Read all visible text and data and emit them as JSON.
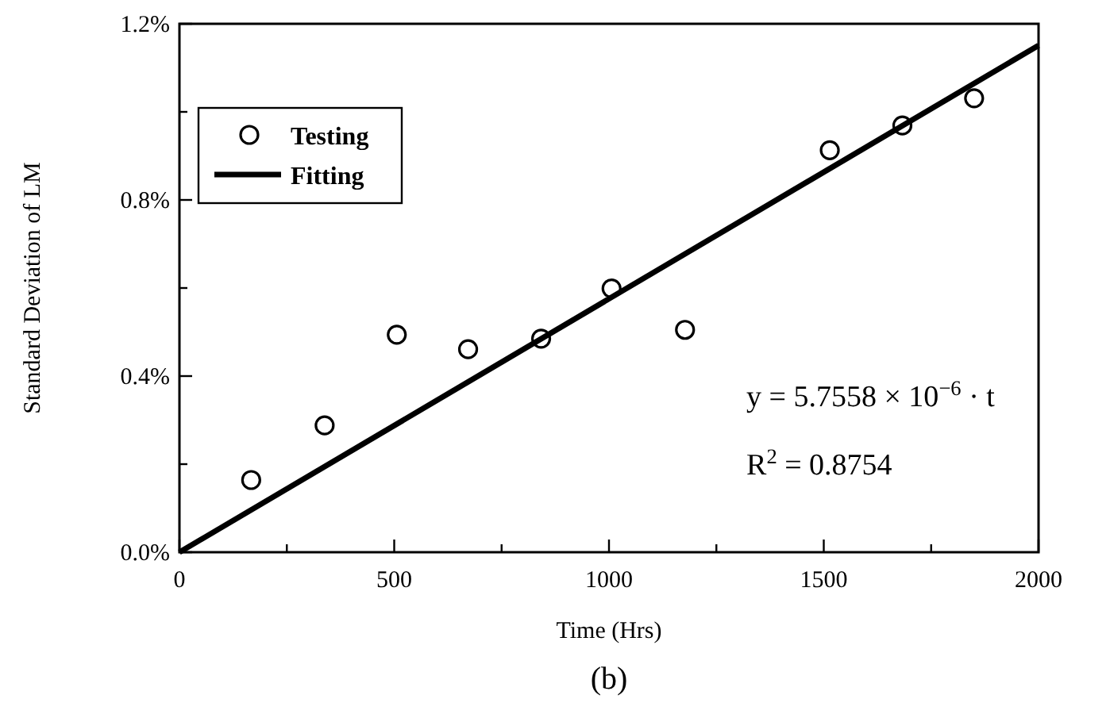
{
  "chart_data": {
    "type": "scatter",
    "xlabel": "Time (Hrs)",
    "ylabel": "Standard Deviation of LM",
    "xlim": [
      0,
      2000
    ],
    "xticks": [
      0,
      {
        "value": 250,
        "label": null
      },
      500,
      {
        "value": 750,
        "label": null
      },
      1000,
      {
        "value": 1250,
        "label": null
      },
      1500,
      {
        "value": 1750,
        "label": null
      },
      2000
    ],
    "ylim": [
      0,
      1.2
    ],
    "yticks": [
      {
        "value": 0,
        "label": "0.0%"
      },
      {
        "value": 0.2,
        "label": null
      },
      {
        "value": 0.4,
        "label": "0.4%"
      },
      {
        "value": 0.6,
        "label": null
      },
      {
        "value": 0.8,
        "label": "0.8%"
      },
      {
        "value": 1.0,
        "label": null
      },
      {
        "value": 1.2,
        "label": "1.2%"
      }
    ],
    "series": [
      {
        "name": "Testing",
        "color": "#000000",
        "marker": "circle",
        "x": [
          167,
          338,
          506,
          672,
          842,
          1006,
          1177,
          1514,
          1683,
          1850
        ],
        "values": [
          0.164,
          0.288,
          0.494,
          0.461,
          0.485,
          0.599,
          0.505,
          0.913,
          0.969,
          1.031
        ]
      },
      {
        "name": "Fitting",
        "type": "line",
        "color": "#000000",
        "line_style": "solid",
        "marker": "none",
        "x": [
          0,
          2000
        ],
        "values": [
          0,
          1.151
        ]
      }
    ],
    "legend": "top left",
    "grid": false,
    "annotations": [
      "y = 5.7558 × 10$^{−6}$ · t",
      "R$^{2}$ = 0.8754",
      "(b)"
    ]
  }
}
